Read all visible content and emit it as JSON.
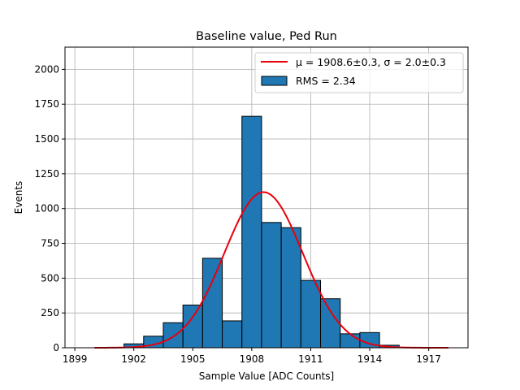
{
  "chart_data": {
    "type": "histogram",
    "title": "Baseline value, Ped Run",
    "xlabel": "Sample Value [ADC Counts]",
    "ylabel": "Events",
    "xlim": [
      1898.5,
      1919.0
    ],
    "ylim": [
      0,
      2160
    ],
    "grid": true,
    "xticks": [
      1899,
      1902,
      1905,
      1908,
      1911,
      1914,
      1917
    ],
    "yticks": [
      0,
      250,
      500,
      750,
      1000,
      1250,
      1500,
      1750,
      2000
    ],
    "bin_edges": [
      1901.5,
      1902.5,
      1903.5,
      1904.5,
      1905.5,
      1906.5,
      1907.5,
      1908.5,
      1909.5,
      1910.5,
      1911.5,
      1912.5,
      1913.5,
      1914.5,
      1915.5
    ],
    "counts": [
      28,
      83,
      180,
      307,
      643,
      193,
      1663,
      900,
      863,
      484,
      352,
      100,
      109,
      18
    ],
    "bar_color": "#1f77b4",
    "fit": {
      "mu": 1908.6,
      "sigma": 2.0,
      "amplitude": 1118,
      "x_range": [
        1900,
        1918
      ],
      "color": "#e8000b"
    },
    "legend": {
      "location": "upper right",
      "fit_label": "μ = 1908.6±0.3, σ = 2.0±0.3",
      "hist_label": "RMS = 2.34"
    }
  }
}
